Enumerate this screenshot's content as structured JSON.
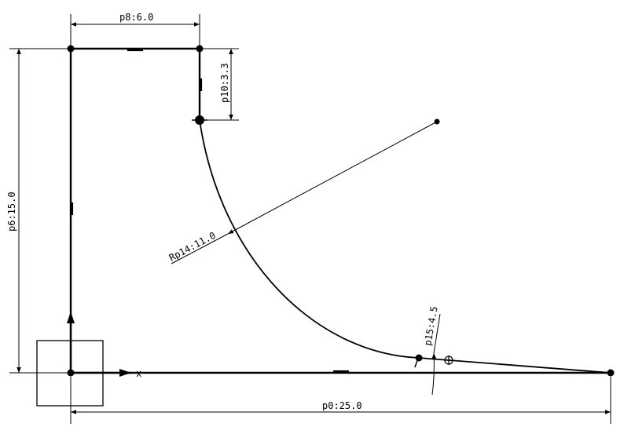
{
  "sketch": {
    "dimensions": {
      "p8": "p8:6.0",
      "p10": "p10:3.3",
      "p6": "p6:15.0",
      "p14": "Rp14:11.0",
      "p15": "p15:4.5",
      "p0": "p0:25.0"
    },
    "axis_label": "x",
    "colors": {
      "geometry": "#000000",
      "background": "#ffffff"
    }
  }
}
